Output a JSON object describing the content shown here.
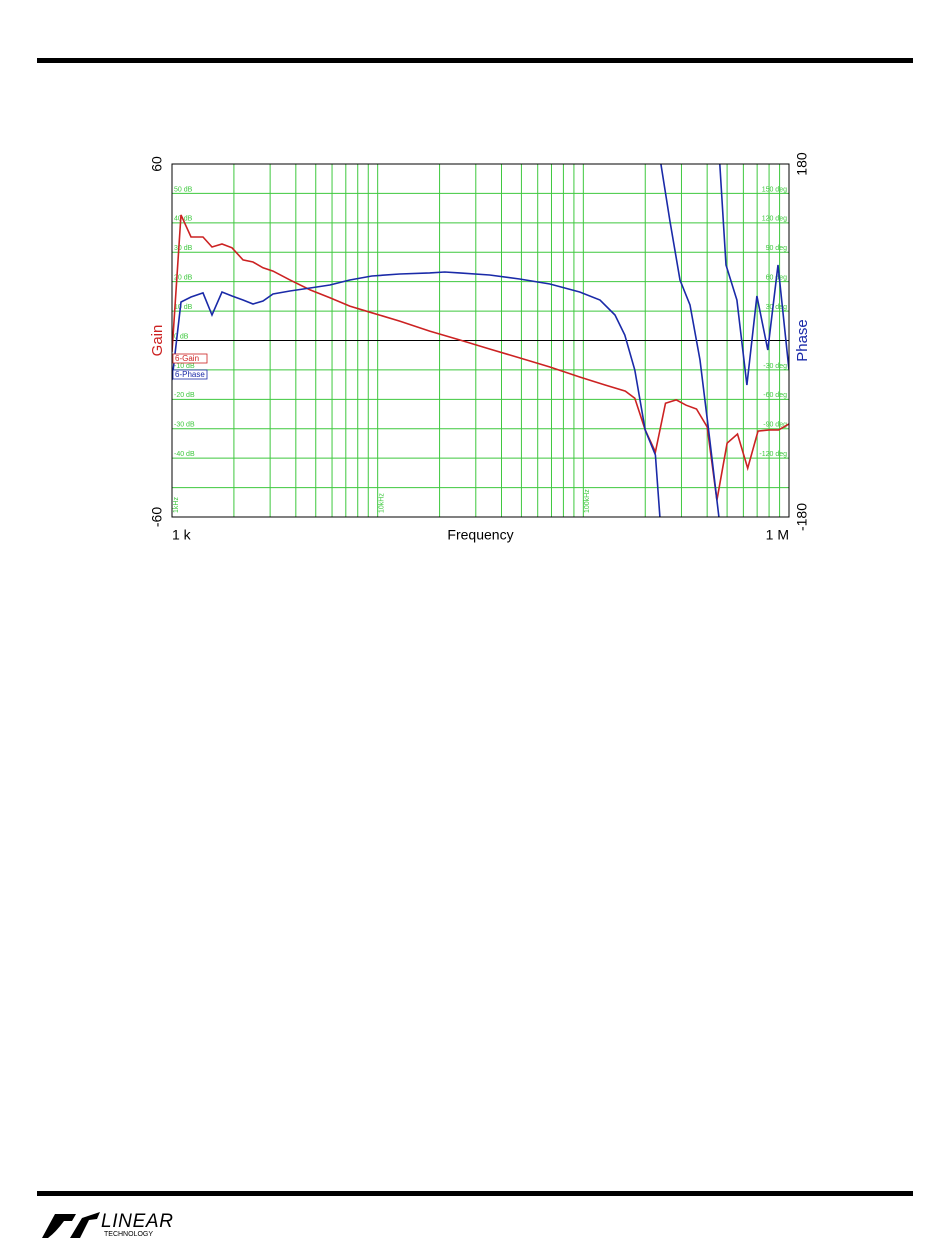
{
  "chart_data": {
    "type": "bode",
    "x_label": "Frequency",
    "y_label": "Gain",
    "y2_label": "Phase",
    "xlim": [
      1000,
      1000000
    ],
    "xscale": "log",
    "xticks": [
      {
        "value": 1000,
        "label": "1 k"
      },
      {
        "value": 1000000,
        "label": "1 M"
      }
    ],
    "xgrid": [
      1000,
      2000,
      3000,
      4000,
      5000,
      6000,
      7000,
      8000,
      9000,
      10000,
      20000,
      30000,
      40000,
      50000,
      60000,
      70000,
      80000,
      90000,
      100000,
      200000,
      300000,
      400000,
      500000,
      600000,
      700000,
      800000,
      900000,
      1000000
    ],
    "xgrid_labels": [
      {
        "value": 1000,
        "label": "1kHz"
      },
      {
        "value": 10000,
        "label": "10kHz"
      },
      {
        "value": 100000,
        "label": "100kHz"
      }
    ],
    "ylim": [
      -60,
      60
    ],
    "yticks": [
      -60,
      60
    ],
    "ygrid": [
      -50,
      -40,
      -30,
      -20,
      -10,
      0,
      10,
      20,
      30,
      40,
      50
    ],
    "ygrid_labels": [
      {
        "value": 50,
        "label": "50 dB"
      },
      {
        "value": 40,
        "label": "40 dB"
      },
      {
        "value": 30,
        "label": "30 dB"
      },
      {
        "value": 20,
        "label": "20 dB"
      },
      {
        "value": 10,
        "label": "10 dB"
      },
      {
        "value": 0,
        "label": "0 dB"
      },
      {
        "value": -10,
        "label": "-10 dB"
      },
      {
        "value": -20,
        "label": "-20 dB"
      },
      {
        "value": -30,
        "label": "-30 dB"
      },
      {
        "value": -40,
        "label": "-40 dB"
      }
    ],
    "y2lim": [
      -180,
      180
    ],
    "y2ticks": [
      -180,
      180
    ],
    "y2grid_labels": [
      {
        "value": 150,
        "label": "150 deg"
      },
      {
        "value": 120,
        "label": "120 deg"
      },
      {
        "value": 90,
        "label": "90 deg"
      },
      {
        "value": 60,
        "label": "60 deg"
      },
      {
        "value": 30,
        "label": "30 deg"
      },
      {
        "value": -30,
        "label": "-30 deg"
      },
      {
        "value": -60,
        "label": "-60 deg"
      },
      {
        "value": -90,
        "label": "-90 deg"
      },
      {
        "value": -120,
        "label": "-120 deg"
      }
    ],
    "grid": true,
    "grid_color": "#3ec83e",
    "legend": "left",
    "series": [
      {
        "name": "6-Gain",
        "color": "#cc2222",
        "x": [
          1000,
          1106,
          1237,
          1415,
          1565,
          1750,
          1958,
          2215,
          2476,
          2770,
          3097,
          3745,
          4693,
          5860,
          7320,
          9380,
          12800,
          17900,
          25000,
          35000,
          49000,
          68800,
          96000,
          127000,
          160000,
          178000,
          200000,
          224000,
          251000,
          283000,
          316000,
          355000,
          400000,
          446000,
          500000,
          562000,
          630000,
          707000,
          800000,
          890000,
          1000000
        ],
        "values": [
          -3.9,
          42.7,
          35.2,
          35.2,
          31.8,
          32.8,
          31.5,
          27.4,
          26.7,
          24.7,
          23.6,
          20.6,
          17.2,
          14.5,
          11.7,
          9.4,
          6.6,
          3.2,
          0.2,
          -2.9,
          -5.9,
          -9.0,
          -12.4,
          -15.1,
          -17.2,
          -19.6,
          -30.4,
          -37.9,
          -21.3,
          -20.2,
          -22.0,
          -23.3,
          -29.4,
          -54.3,
          -34.9,
          -31.8,
          -43.4,
          -30.8,
          -30.4,
          -30.4,
          -28.4
        ]
      },
      {
        "name": "6-Phase",
        "color": "#1a2aa8",
        "axis": "y2",
        "x": [
          1000,
          1106,
          1237,
          1415,
          1565,
          1750,
          1958,
          2215,
          2476,
          2770,
          3097,
          3745,
          4693,
          5860,
          7320,
          9380,
          12800,
          17900,
          21200,
          25000,
          35000,
          49000,
          68800,
          96000,
          120500,
          142500,
          159000,
          178000,
          200000,
          224000,
          235700,
          237000,
          238400,
          263700,
          295000,
          330000,
          369000,
          412000,
          456000,
          458000,
          461000,
          494000,
          558000,
          624000,
          698000,
          789000,
          884000,
          1000000
        ],
        "values": [
          -40.3,
          39.3,
          44.4,
          48.5,
          26,
          49.5,
          45.4,
          41.3,
          37.2,
          40.3,
          47.4,
          50.5,
          53.5,
          56.6,
          61.7,
          65.8,
          67.8,
          68.9,
          69.9,
          68.9,
          66.8,
          62.7,
          57.6,
          49.5,
          41.3,
          26,
          5.6,
          -30.1,
          -91.3,
          -116.8,
          -180,
          null,
          180,
          122,
          61.7,
          36.2,
          -19.9,
          -101.5,
          -180,
          null,
          180,
          77,
          41.3,
          -45.4,
          45.4,
          -9.7,
          77,
          -30.1
        ]
      }
    ]
  },
  "footer": {
    "logo": "LINEAR",
    "logo_sub": "TECHNOLOGY"
  }
}
